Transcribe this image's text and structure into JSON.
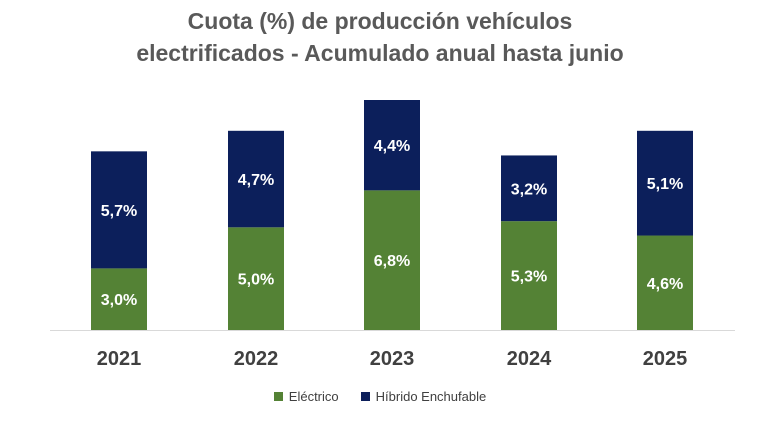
{
  "chart_data": {
    "type": "bar",
    "stacked": true,
    "title_line1": "Cuota (%) de producción vehículos",
    "title_line2": "electrificados - Acumulado anual hasta junio",
    "categories": [
      "2021",
      "2022",
      "2023",
      "2024",
      "2025"
    ],
    "series": [
      {
        "name": "Eléctrico",
        "color": "#548235",
        "values": [
          3.0,
          5.0,
          6.8,
          5.3,
          4.6
        ],
        "labels": [
          "3,0%",
          "5,0%",
          "6,8%",
          "5,3%",
          "4,6%"
        ]
      },
      {
        "name": "Híbrido Enchufable",
        "color": "#0c1f5b",
        "values": [
          5.7,
          4.7,
          4.4,
          3.2,
          5.1
        ],
        "labels": [
          "5,7%",
          "4,7%",
          "4,4%",
          "3,2%",
          "5,1%"
        ]
      }
    ],
    "ylim": [
      0,
      11.2
    ],
    "grid": false,
    "legend_position": "bottom"
  }
}
